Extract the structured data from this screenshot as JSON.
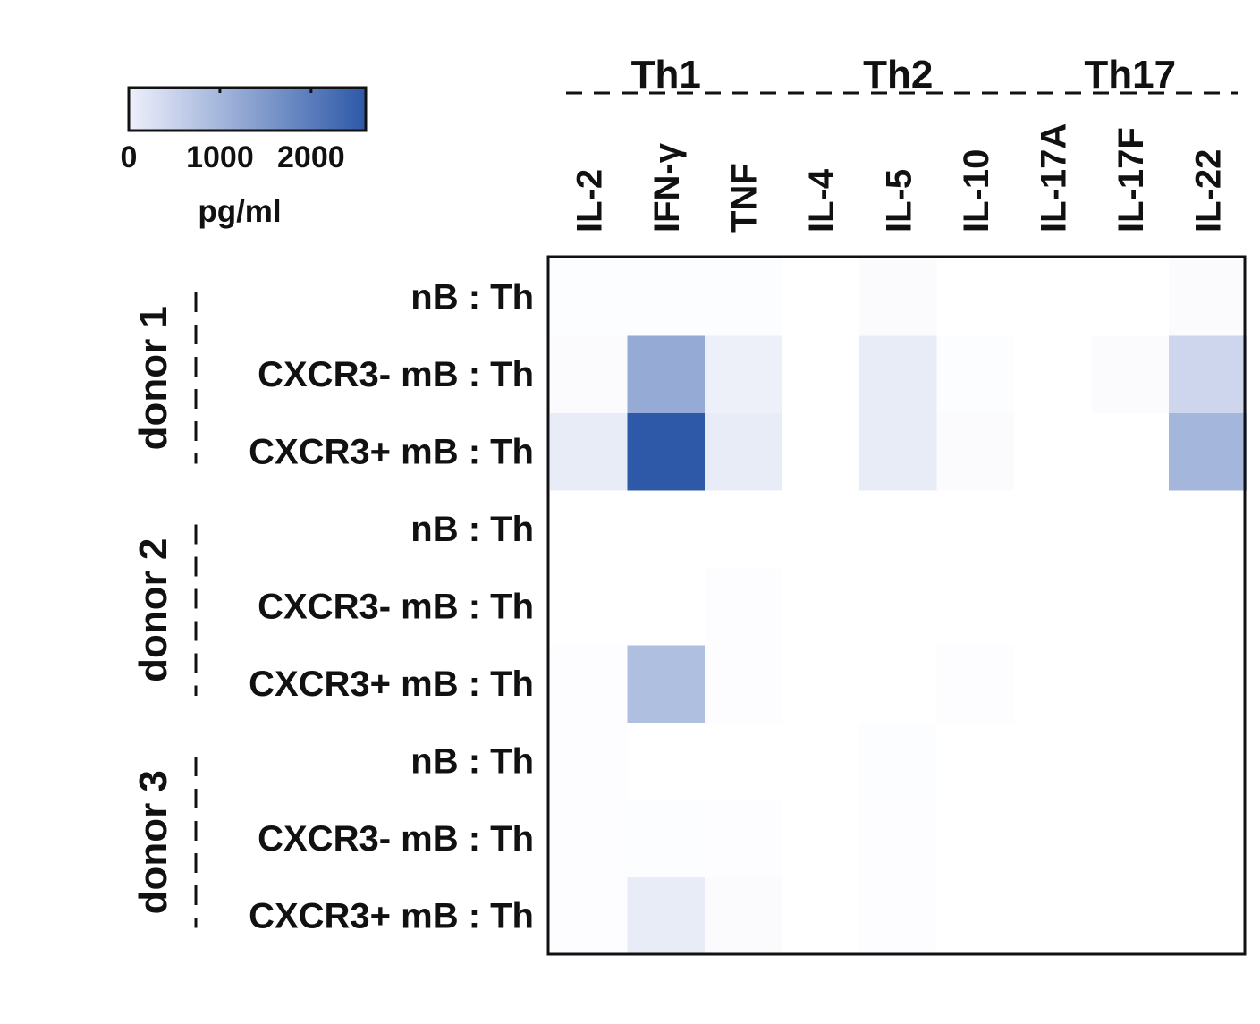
{
  "colorbar": {
    "ticks": [
      "0",
      "1000",
      "2000"
    ],
    "tick_values": [
      0,
      1000,
      2000
    ],
    "max": 2600,
    "unit_label": "pg/ml",
    "color_low": "#eef0fb",
    "color_high": "#2d59a8"
  },
  "chart_data": {
    "type": "heatmap",
    "unit": "pg/ml",
    "groups": [
      {
        "label": "Th1",
        "columns": [
          "IL-2",
          "IFN-γ",
          "TNF"
        ]
      },
      {
        "label": "Th2",
        "columns": [
          "IL-4",
          "IL-5",
          "IL-10"
        ]
      },
      {
        "label": "Th17",
        "columns": [
          "IL-17A",
          "IL-17F",
          "IL-22"
        ]
      }
    ],
    "columns": [
      "IL-2",
      "IFN-γ",
      "TNF",
      "IL-4",
      "IL-5",
      "IL-10",
      "IL-17A",
      "IL-17F",
      "IL-22"
    ],
    "donors": [
      {
        "label": "donor 1",
        "rows": [
          "nB : Th",
          "CXCR3- mB : Th",
          "CXCR3+ mB : Th"
        ]
      },
      {
        "label": "donor 2",
        "rows": [
          "nB : Th",
          "CXCR3- mB : Th",
          "CXCR3+ mB : Th"
        ]
      },
      {
        "label": "donor 3",
        "rows": [
          "nB : Th",
          "CXCR3- mB : Th",
          "CXCR3+ mB : Th"
        ]
      }
    ],
    "values": [
      [
        20,
        20,
        20,
        0,
        30,
        0,
        0,
        0,
        30
      ],
      [
        30,
        1200,
        120,
        0,
        150,
        20,
        0,
        30,
        450
      ],
      [
        150,
        2600,
        150,
        0,
        150,
        30,
        0,
        0,
        1000
      ],
      [
        0,
        0,
        0,
        0,
        0,
        0,
        0,
        0,
        0
      ],
      [
        0,
        0,
        10,
        0,
        0,
        0,
        0,
        0,
        0
      ],
      [
        10,
        850,
        10,
        0,
        0,
        10,
        0,
        0,
        0
      ],
      [
        10,
        0,
        0,
        0,
        20,
        0,
        0,
        0,
        0
      ],
      [
        10,
        20,
        10,
        0,
        10,
        0,
        0,
        0,
        0
      ],
      [
        10,
        150,
        30,
        0,
        10,
        0,
        0,
        0,
        0
      ]
    ]
  }
}
